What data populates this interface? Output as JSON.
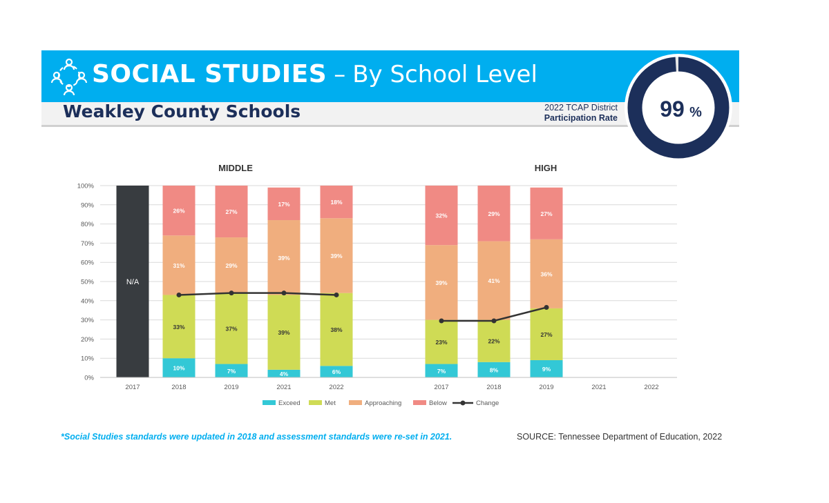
{
  "header": {
    "title_main": "SOCIAL STUDIES",
    "title_dash": "–",
    "title_sub": "By School Level",
    "district": "Weakley County Schools",
    "tcap_line1": "2022 TCAP District",
    "tcap_line2": "Participation Rate",
    "participation_value": "99",
    "participation_unit": "%",
    "participation_rate": 0.99,
    "icon": "people-network-icon"
  },
  "colors": {
    "banner": "#00aeef",
    "navy": "#1c2f5a",
    "exceed": "#33c8d6",
    "met": "#cfdb55",
    "approaching": "#f0ae7e",
    "below": "#f08a84",
    "na_bar": "#383c40",
    "change": "#333333"
  },
  "chart_data": [
    {
      "type": "bar",
      "stacked": true,
      "title": "MIDDLE",
      "categories": [
        "2017",
        "2018",
        "2019",
        "2021",
        "2022"
      ],
      "na_label": "N/A",
      "na_categories": [
        "2017"
      ],
      "series": [
        {
          "name": "Exceed",
          "values": [
            null,
            10,
            7,
            4,
            6
          ]
        },
        {
          "name": "Met",
          "values": [
            null,
            33,
            37,
            39,
            38
          ]
        },
        {
          "name": "Approaching",
          "values": [
            null,
            31,
            29,
            39,
            39
          ]
        },
        {
          "name": "Below",
          "values": [
            null,
            26,
            27,
            17,
            18
          ]
        }
      ],
      "change": {
        "name": "Change",
        "values": [
          null,
          43,
          44,
          44,
          43
        ]
      },
      "ylim": [
        0,
        100
      ],
      "yticks": [
        "0%",
        "10%",
        "20%",
        "30%",
        "40%",
        "50%",
        "60%",
        "70%",
        "80%",
        "90%",
        "100%"
      ],
      "grid": true
    },
    {
      "type": "bar",
      "stacked": true,
      "title": "HIGH",
      "categories": [
        "2017",
        "2018",
        "2019",
        "2021",
        "2022"
      ],
      "series": [
        {
          "name": "Exceed",
          "values": [
            7,
            8,
            9,
            null,
            null
          ]
        },
        {
          "name": "Met",
          "values": [
            23,
            22,
            27,
            null,
            null
          ]
        },
        {
          "name": "Approaching",
          "values": [
            39,
            41,
            36,
            null,
            null
          ]
        },
        {
          "name": "Below",
          "values": [
            32,
            29,
            27,
            null,
            null
          ]
        }
      ],
      "change": {
        "name": "Change",
        "values": [
          29.5,
          29.5,
          36.5,
          null,
          null
        ]
      },
      "ylim": [
        0,
        100
      ],
      "grid": true
    }
  ],
  "legend": {
    "placement": "bottom",
    "items": [
      {
        "label": "Exceed",
        "kind": "box",
        "color": "#33c8d6"
      },
      {
        "label": "Met",
        "kind": "box",
        "color": "#cfdb55"
      },
      {
        "label": "Approaching",
        "kind": "box",
        "color": "#f0ae7e"
      },
      {
        "label": "Below",
        "kind": "box",
        "color": "#f08a84"
      },
      {
        "label": "Change",
        "kind": "line",
        "color": "#333333"
      }
    ]
  },
  "footer": {
    "note": "*Social Studies standards were updated in 2018 and assessment standards were re-set in 2021.",
    "source": "SOURCE: Tennessee Department of Education, 2022"
  }
}
